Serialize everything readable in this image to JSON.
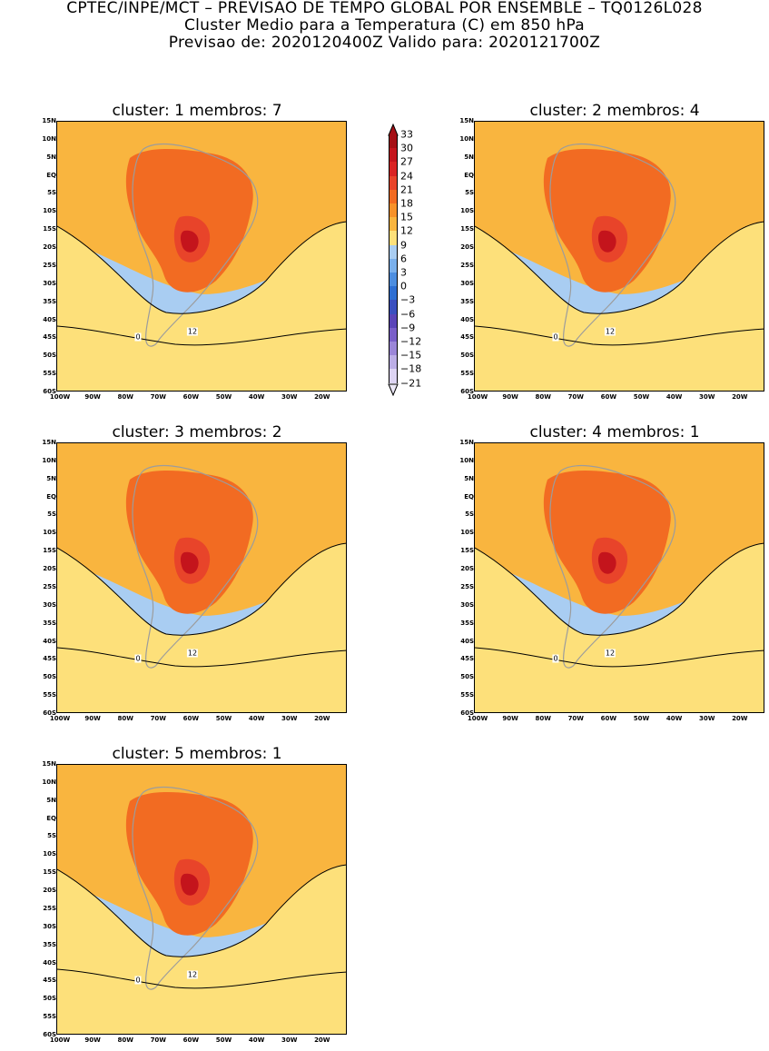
{
  "header": {
    "line1": "CPTEC/INPE/MCT – PREVISAO DE TEMPO GLOBAL POR ENSEMBLE – TQ0126L028",
    "line2": "Cluster Medio para a Temperatura (C) em 850 hPa",
    "line3": "Previsao de: 2020120400Z    Valido para: 2020121700Z"
  },
  "panels": [
    {
      "cluster": "1",
      "membros": "7",
      "title": "cluster: 1   membros: 7"
    },
    {
      "cluster": "2",
      "membros": "4",
      "title": "cluster: 2   membros: 4"
    },
    {
      "cluster": "3",
      "membros": "2",
      "title": "cluster: 3   membros: 2"
    },
    {
      "cluster": "4",
      "membros": "1",
      "title": "cluster: 4   membros: 1"
    },
    {
      "cluster": "5",
      "membros": "1",
      "title": "cluster: 5   membros: 1"
    }
  ],
  "axes": {
    "y_ticks": [
      "15N",
      "10N",
      "5N",
      "EQ",
      "5S",
      "10S",
      "15S",
      "20S",
      "25S",
      "30S",
      "35S",
      "40S",
      "45S",
      "50S",
      "55S",
      "60S"
    ],
    "x_ticks": [
      "100W",
      "90W",
      "80W",
      "70W",
      "60W",
      "50W",
      "40W",
      "30W",
      "20W"
    ]
  },
  "contour_labels": {
    "twelve": "12",
    "zero": "0"
  },
  "legend": {
    "levels": [
      "33",
      "30",
      "27",
      "24",
      "21",
      "18",
      "15",
      "12",
      "9",
      "6",
      "3",
      "0",
      "−3",
      "−6",
      "−9",
      "−12",
      "−15",
      "−18",
      "−21"
    ],
    "colors": [
      "#a50f15",
      "#c4141c",
      "#d92323",
      "#e8442a",
      "#f26b22",
      "#f7922a",
      "#f9b53f",
      "#fde07a",
      "#a9cdf2",
      "#7ab0ec",
      "#4d8ee0",
      "#2f6fd2",
      "#3a4fbf",
      "#5a44b8",
      "#7a5fc9",
      "#9b86d8",
      "#bcaee6",
      "#ddd4f3"
    ]
  },
  "chart_data": {
    "type": "heatmap",
    "title": "Cluster Medio para a Temperatura (C) em 850 hPa",
    "lon_range": [
      -102,
      -13
    ],
    "lat_range": [
      -60,
      15
    ],
    "units": "C",
    "contour_lines": [
      12,
      0
    ],
    "panels": [
      {
        "cluster": 1,
        "membros": 7
      },
      {
        "cluster": 2,
        "membros": 4
      },
      {
        "cluster": 3,
        "membros": 2
      },
      {
        "cluster": 4,
        "membros": 1
      },
      {
        "cluster": 5,
        "membros": 1
      }
    ]
  }
}
